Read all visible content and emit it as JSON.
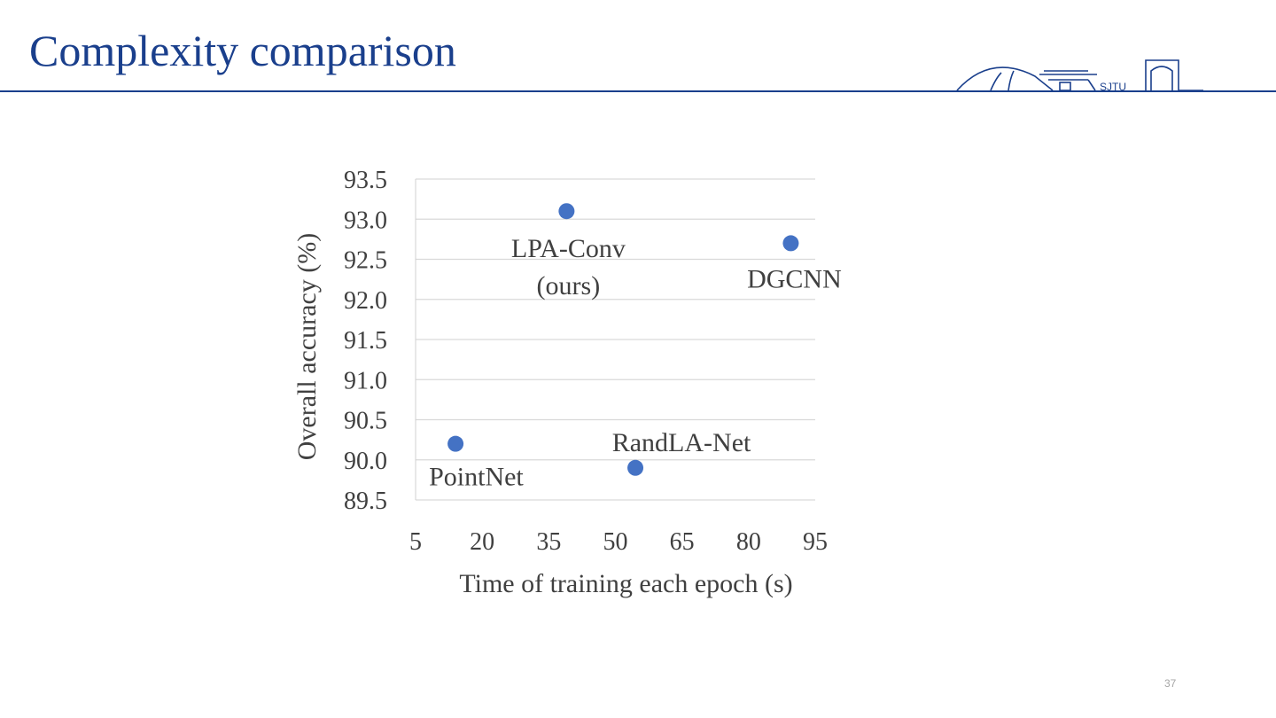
{
  "slide": {
    "title": "Complexity comparison",
    "page_number": "37",
    "accent_color": "#1a3f8c",
    "logo_text": "SJTU"
  },
  "chart_data": {
    "type": "scatter",
    "title": "",
    "xlabel": "Time of training each epoch (s)",
    "ylabel": "Overall accuracy (%)",
    "xlim": [
      5,
      95
    ],
    "ylim": [
      89.5,
      93.5
    ],
    "xticks": [
      "5",
      "20",
      "35",
      "50",
      "65",
      "80",
      "95"
    ],
    "yticks": [
      "93.5",
      "93.0",
      "92.5",
      "92.0",
      "91.5",
      "91.0",
      "90.5",
      "90.0",
      "89.5"
    ],
    "grid": "horizontal",
    "marker_color": "#4472c4",
    "points": [
      {
        "label": "PointNet",
        "x": 14,
        "y": 90.2
      },
      {
        "label": "LPA-Conv (ours)",
        "label_lines": [
          "LPA-Conv",
          "(ours)"
        ],
        "x": 39,
        "y": 93.1
      },
      {
        "label": "RandLA-Net",
        "x": 54.5,
        "y": 89.9
      },
      {
        "label": "DGCNN",
        "x": 89.5,
        "y": 92.7
      }
    ]
  }
}
